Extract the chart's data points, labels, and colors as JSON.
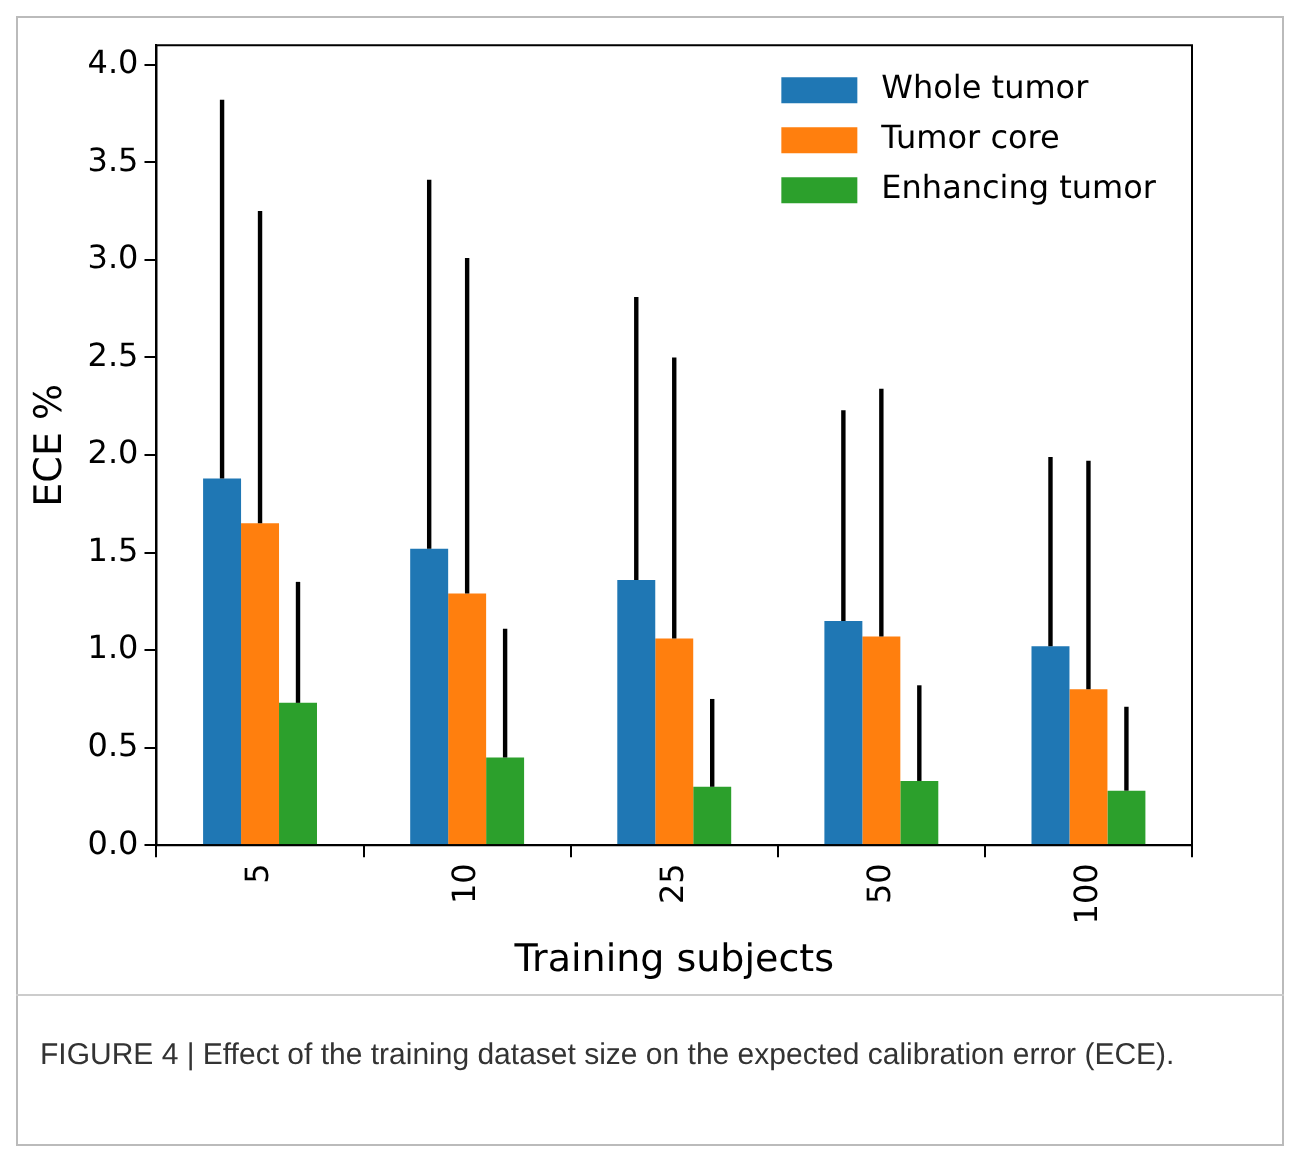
{
  "chart_data": {
    "type": "bar",
    "xlabel": "Training subjects",
    "ylabel": "ECE %",
    "categories": [
      "5",
      "10",
      "25",
      "50",
      "100"
    ],
    "series": [
      {
        "name": "Whole tumor",
        "color": "#1f77b4",
        "values": [
          1.88,
          1.52,
          1.36,
          1.15,
          1.02
        ],
        "errors": [
          [
            1.88,
            3.82
          ],
          [
            1.52,
            3.41
          ],
          [
            1.36,
            2.81
          ],
          [
            1.15,
            2.23
          ],
          [
            1.02,
            1.99
          ]
        ]
      },
      {
        "name": "Tumor core",
        "color": "#ff7f0e",
        "values": [
          1.65,
          1.29,
          1.06,
          1.07,
          0.8
        ],
        "errors": [
          [
            1.65,
            3.25
          ],
          [
            1.29,
            3.01
          ],
          [
            1.06,
            2.5
          ],
          [
            1.07,
            2.34
          ],
          [
            0.8,
            1.97
          ]
        ]
      },
      {
        "name": "Enhancing tumor",
        "color": "#2ca02c",
        "values": [
          0.73,
          0.45,
          0.3,
          0.33,
          0.28
        ],
        "errors": [
          [
            0.73,
            1.35
          ],
          [
            0.45,
            1.11
          ],
          [
            0.3,
            0.75
          ],
          [
            0.33,
            0.82
          ],
          [
            0.28,
            0.71
          ]
        ]
      }
    ],
    "ylim": [
      0,
      4.1
    ],
    "yticks": [
      {
        "value": 0,
        "label": "0.0"
      },
      0.5,
      {
        "value": 1,
        "label": "1.0"
      },
      1.5,
      {
        "value": 2,
        "label": "2.0"
      },
      2.5,
      {
        "value": 3,
        "label": "3.0"
      },
      3.5,
      {
        "value": 4,
        "label": "4.0"
      }
    ],
    "grid": false,
    "legend": "top right",
    "annotations": [
      "FIGURE 4 | Effect of the training dataset size on the expected calibration error (ECE)."
    ]
  }
}
